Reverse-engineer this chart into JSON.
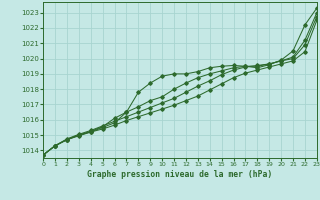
{
  "title": "Graphe pression niveau de la mer (hPa)",
  "bg_color": "#c5e8e5",
  "grid_color": "#a8d4d0",
  "line_color": "#2d6a2d",
  "xlim": [
    0,
    23
  ],
  "ylim": [
    1013.5,
    1023.7
  ],
  "yticks": [
    1014,
    1015,
    1016,
    1017,
    1018,
    1019,
    1020,
    1021,
    1022,
    1023
  ],
  "xticks": [
    0,
    1,
    2,
    3,
    4,
    5,
    6,
    7,
    8,
    9,
    10,
    11,
    12,
    13,
    14,
    15,
    16,
    17,
    18,
    19,
    20,
    21,
    22,
    23
  ],
  "series": [
    [
      1013.7,
      1014.3,
      1014.7,
      1015.0,
      1015.2,
      1015.5,
      1015.8,
      1016.5,
      1017.8,
      1018.4,
      1018.85,
      1019.0,
      1019.0,
      1019.15,
      1019.4,
      1019.5,
      1019.55,
      1019.5,
      1019.4,
      1019.6,
      1019.9,
      1020.5,
      1022.2,
      1023.3
    ],
    [
      1013.7,
      1014.3,
      1014.7,
      1015.0,
      1015.25,
      1015.55,
      1016.1,
      1016.5,
      1016.85,
      1017.25,
      1017.5,
      1018.0,
      1018.4,
      1018.75,
      1019.0,
      1019.2,
      1019.4,
      1019.5,
      1019.5,
      1019.65,
      1019.85,
      1020.1,
      1021.2,
      1023.0
    ],
    [
      1013.7,
      1014.3,
      1014.75,
      1015.05,
      1015.3,
      1015.6,
      1015.9,
      1016.2,
      1016.5,
      1016.8,
      1017.1,
      1017.4,
      1017.8,
      1018.2,
      1018.55,
      1018.95,
      1019.25,
      1019.45,
      1019.55,
      1019.65,
      1019.85,
      1020.0,
      1020.9,
      1022.75
    ],
    [
      1013.7,
      1014.3,
      1014.7,
      1014.95,
      1015.2,
      1015.4,
      1015.65,
      1015.95,
      1016.2,
      1016.45,
      1016.7,
      1016.95,
      1017.25,
      1017.55,
      1017.95,
      1018.35,
      1018.75,
      1019.05,
      1019.25,
      1019.45,
      1019.65,
      1019.85,
      1020.45,
      1022.5
    ]
  ]
}
